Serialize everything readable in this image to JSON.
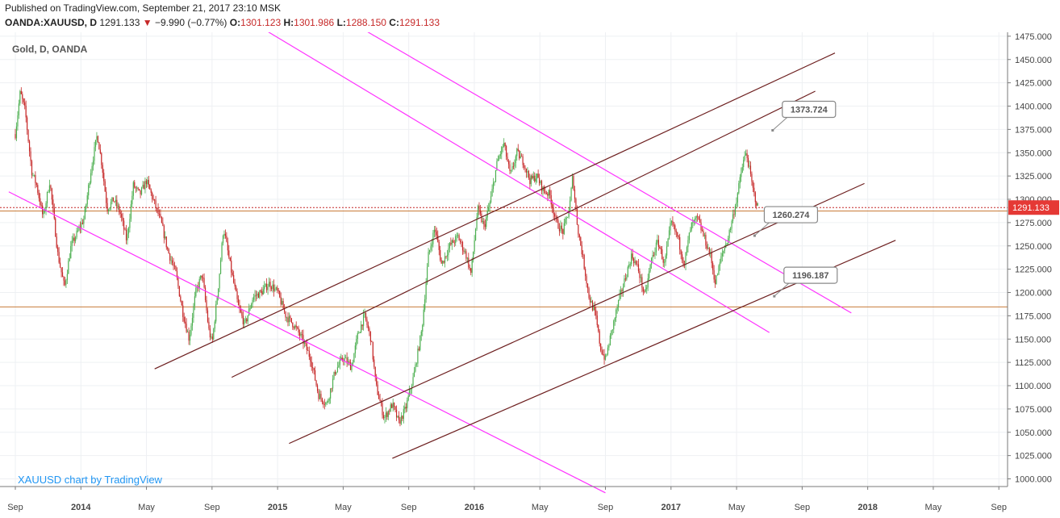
{
  "header": {
    "published": "Published on TradingView.com, September 21, 2017 23:10 MSK",
    "symbol": "OANDA:XAUUSD, D",
    "last": "1291.133",
    "change_arrow": "▼",
    "change": "−9.990 (−0.77%)",
    "open_label": "O:",
    "open": "1301.123",
    "high_label": "H:",
    "high": "1301.986",
    "low_label": "L:",
    "low": "1288.150",
    "close_label": "C:",
    "close": "1291.133"
  },
  "chart_data": {
    "type": "candlestick",
    "title": "Gold, D, OANDA",
    "watermark": "XAUUSD chart by TradingView",
    "ylim": [
      985,
      1480
    ],
    "y_ticks": [
      "1475.000",
      "1450.000",
      "1425.000",
      "1400.000",
      "1375.000",
      "1350.000",
      "1325.000",
      "1300.000",
      "1275.000",
      "1250.000",
      "1225.000",
      "1200.000",
      "1175.000",
      "1150.000",
      "1125.000",
      "1100.000",
      "1075.000",
      "1050.000",
      "1025.000",
      "1000.000"
    ],
    "x_ticks": [
      "Sep",
      "2014",
      "May",
      "Sep",
      "2015",
      "May",
      "Sep",
      "2016",
      "May",
      "Sep",
      "2017",
      "May",
      "Sep",
      "2018",
      "May",
      "Sep"
    ],
    "x_tick_months": [
      0,
      4,
      8,
      12,
      16,
      20,
      24,
      28,
      32,
      36,
      40,
      44,
      48,
      52,
      56,
      60
    ],
    "last_price": 1291.133,
    "last_price_label": "1291.133",
    "price_anchors": [
      [
        0,
        1370
      ],
      [
        0.3,
        1415
      ],
      [
        0.6,
        1395
      ],
      [
        1.0,
        1330
      ],
      [
        1.3,
        1315
      ],
      [
        1.7,
        1280
      ],
      [
        2.1,
        1320
      ],
      [
        2.6,
        1240
      ],
      [
        3.0,
        1205
      ],
      [
        3.4,
        1250
      ],
      [
        3.8,
        1265
      ],
      [
        4.2,
        1280
      ],
      [
        4.6,
        1330
      ],
      [
        5.0,
        1370
      ],
      [
        5.3,
        1335
      ],
      [
        5.6,
        1290
      ],
      [
        6.0,
        1300
      ],
      [
        6.4,
        1285
      ],
      [
        6.8,
        1255
      ],
      [
        7.2,
        1315
      ],
      [
        7.6,
        1305
      ],
      [
        8.0,
        1320
      ],
      [
        8.4,
        1300
      ],
      [
        8.9,
        1275
      ],
      [
        9.3,
        1245
      ],
      [
        9.8,
        1220
      ],
      [
        10.2,
        1180
      ],
      [
        10.6,
        1150
      ],
      [
        11.0,
        1200
      ],
      [
        11.4,
        1220
      ],
      [
        11.8,
        1160
      ],
      [
        12.0,
        1145
      ],
      [
        12.4,
        1210
      ],
      [
        12.7,
        1270
      ],
      [
        13.1,
        1230
      ],
      [
        13.6,
        1185
      ],
      [
        14.0,
        1165
      ],
      [
        14.5,
        1195
      ],
      [
        15.0,
        1200
      ],
      [
        15.5,
        1210
      ],
      [
        16.0,
        1200
      ],
      [
        16.5,
        1175
      ],
      [
        17.0,
        1165
      ],
      [
        17.5,
        1150
      ],
      [
        18.0,
        1130
      ],
      [
        18.5,
        1090
      ],
      [
        19.0,
        1080
      ],
      [
        19.5,
        1115
      ],
      [
        20.0,
        1130
      ],
      [
        20.5,
        1120
      ],
      [
        20.9,
        1155
      ],
      [
        21.3,
        1175
      ],
      [
        21.7,
        1150
      ],
      [
        22.0,
        1100
      ],
      [
        22.5,
        1065
      ],
      [
        23.0,
        1080
      ],
      [
        23.4,
        1060
      ],
      [
        23.8,
        1075
      ],
      [
        24.3,
        1110
      ],
      [
        24.8,
        1160
      ],
      [
        25.2,
        1240
      ],
      [
        25.6,
        1270
      ],
      [
        26.0,
        1230
      ],
      [
        26.5,
        1250
      ],
      [
        27.0,
        1260
      ],
      [
        27.5,
        1240
      ],
      [
        27.8,
        1220
      ],
      [
        28.2,
        1290
      ],
      [
        28.6,
        1270
      ],
      [
        29.0,
        1300
      ],
      [
        29.4,
        1340
      ],
      [
        29.8,
        1360
      ],
      [
        30.2,
        1325
      ],
      [
        30.6,
        1350
      ],
      [
        31.0,
        1340
      ],
      [
        31.4,
        1320
      ],
      [
        31.8,
        1325
      ],
      [
        32.2,
        1310
      ],
      [
        32.6,
        1305
      ],
      [
        33.0,
        1275
      ],
      [
        33.4,
        1265
      ],
      [
        33.8,
        1290
      ],
      [
        34.0,
        1325
      ],
      [
        34.3,
        1270
      ],
      [
        34.6,
        1240
      ],
      [
        35.0,
        1195
      ],
      [
        35.4,
        1175
      ],
      [
        35.7,
        1140
      ],
      [
        36.0,
        1128
      ],
      [
        36.4,
        1160
      ],
      [
        36.8,
        1190
      ],
      [
        37.2,
        1215
      ],
      [
        37.6,
        1240
      ],
      [
        38.0,
        1225
      ],
      [
        38.4,
        1195
      ],
      [
        38.8,
        1235
      ],
      [
        39.2,
        1255
      ],
      [
        39.6,
        1230
      ],
      [
        40.0,
        1275
      ],
      [
        40.4,
        1260
      ],
      [
        40.8,
        1230
      ],
      [
        41.2,
        1270
      ],
      [
        41.6,
        1280
      ],
      [
        42.0,
        1260
      ],
      [
        42.4,
        1240
      ],
      [
        42.7,
        1210
      ],
      [
        43.1,
        1240
      ],
      [
        43.5,
        1260
      ],
      [
        44.0,
        1300
      ],
      [
        44.4,
        1340
      ],
      [
        44.6,
        1350
      ],
      [
        45.0,
        1310
      ],
      [
        45.3,
        1291
      ]
    ],
    "horizontal_levels": [
      {
        "price": 1291.133,
        "color": "#c62828",
        "style": "dotted"
      },
      {
        "price": 1287.5,
        "color": "#c87b38",
        "style": "solid"
      },
      {
        "price": 1184.5,
        "color": "#c87b38",
        "style": "solid"
      }
    ],
    "trend_lines": [
      {
        "color": "#ff33ff",
        "points": [
          [
            -0.4,
            1308
          ],
          [
            36.0,
            985
          ]
        ]
      },
      {
        "color": "#ff33ff",
        "points": [
          [
            13.5,
            1500
          ],
          [
            46.0,
            1157
          ]
        ]
      },
      {
        "color": "#ff33ff",
        "points": [
          [
            19.5,
            1500
          ],
          [
            51.0,
            1178
          ]
        ]
      },
      {
        "color": "#6d1f1f",
        "points": [
          [
            8.5,
            1118
          ],
          [
            50.0,
            1457
          ]
        ]
      },
      {
        "color": "#6d1f1f",
        "points": [
          [
            13.2,
            1109
          ],
          [
            48.8,
            1416
          ]
        ]
      },
      {
        "color": "#6d1f1f",
        "points": [
          [
            16.7,
            1038
          ],
          [
            51.8,
            1317
          ]
        ]
      },
      {
        "color": "#6d1f1f",
        "points": [
          [
            23.0,
            1022
          ],
          [
            53.7,
            1256
          ]
        ]
      }
    ],
    "price_labels": [
      {
        "text": "1373.724",
        "price": 1374,
        "month": 46.2
      },
      {
        "text": "1260.274",
        "price": 1261,
        "month": 45.1
      },
      {
        "text": "1196.187",
        "price": 1196,
        "month": 46.3
      }
    ],
    "colors": {
      "up": "#4caf50",
      "down": "#c62828",
      "label_bg": "#e53935",
      "label_box_border": "#888888"
    }
  }
}
